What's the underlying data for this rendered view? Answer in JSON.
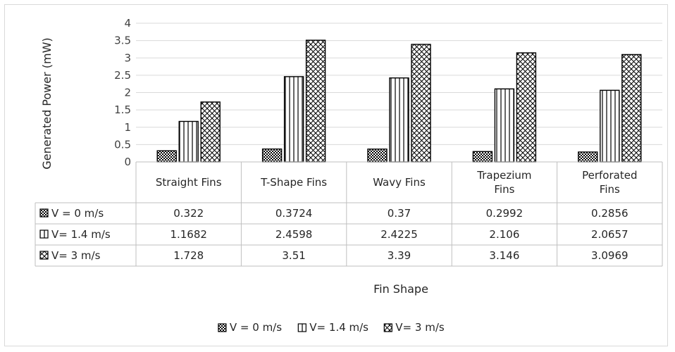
{
  "chart_data": {
    "type": "bar",
    "title": "",
    "xlabel": "Fin Shape",
    "ylabel": "Generated Power (mW)",
    "ylim": [
      0,
      4
    ],
    "yticks": [
      "0",
      "0.5",
      "1",
      "1.5",
      "2",
      "2.5",
      "3",
      "3.5",
      "4"
    ],
    "categories": [
      [
        "Straight Fins"
      ],
      [
        "T-Shape Fins"
      ],
      [
        "Wavy Fins"
      ],
      [
        "Trapezium",
        "Fins"
      ],
      [
        "Perforated",
        "Fins"
      ]
    ],
    "series": [
      {
        "name": "V = 0 m/s",
        "pattern": "checker",
        "values": [
          0.322,
          0.3724,
          0.37,
          0.2992,
          0.2856
        ],
        "labels": [
          "0.322",
          "0.3724",
          "0.37",
          "0.2992",
          "0.2856"
        ]
      },
      {
        "name": "V= 1.4 m/s",
        "pattern": "vertical",
        "values": [
          1.1682,
          2.4598,
          2.4225,
          2.106,
          2.0657
        ],
        "labels": [
          "1.1682",
          "2.4598",
          "2.4225",
          "2.106",
          "2.0657"
        ]
      },
      {
        "name": "V= 3 m/s",
        "pattern": "crosshatch",
        "values": [
          1.728,
          3.51,
          3.39,
          3.146,
          3.0969
        ],
        "labels": [
          "1.728",
          "3.51",
          "3.39",
          "3.146",
          "3.0969"
        ]
      }
    ],
    "legend_position": "bottom",
    "grid": true,
    "data_table": true,
    "colors": {
      "bar_stroke": "#000000",
      "grid": "#d9d9d9",
      "text": "#404040"
    }
  }
}
